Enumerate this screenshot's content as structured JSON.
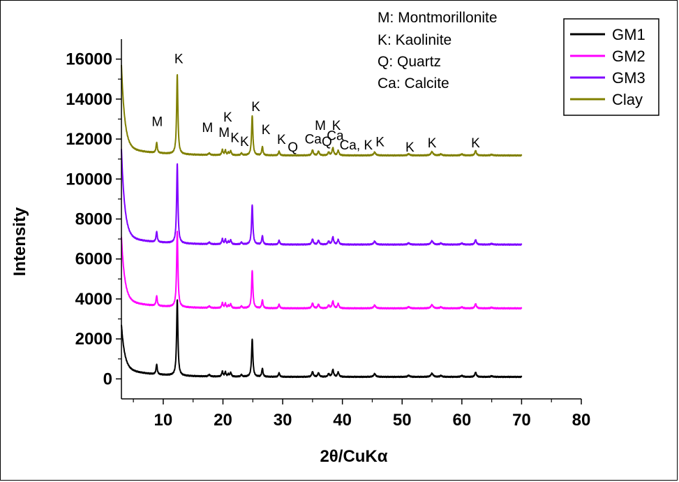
{
  "chart_data": {
    "type": "line",
    "title": "",
    "xlabel": "2θ/CuKα",
    "ylabel": "Intensity",
    "xlim": [
      3,
      80
    ],
    "ylim": [
      -1000,
      17000
    ],
    "xticks": [
      10,
      20,
      30,
      40,
      50,
      60,
      70,
      80
    ],
    "yticks": [
      0,
      2000,
      4000,
      6000,
      8000,
      10000,
      12000,
      14000,
      16000
    ],
    "x_tick_labels": [
      "10",
      "20",
      "30",
      "40",
      "50",
      "60",
      "70",
      "80"
    ],
    "y_tick_labels": [
      "0",
      "2000",
      "4000",
      "6000",
      "8000",
      "10000",
      "12000",
      "14000",
      "16000"
    ],
    "grid": false,
    "legend_position": "top-right",
    "x_range": [
      3,
      70
    ],
    "peaks": [
      {
        "pos": 8.9,
        "h": 500,
        "w": 0.12
      },
      {
        "pos": 12.35,
        "h": 3800,
        "w": 0.13
      },
      {
        "pos": 17.7,
        "h": 90,
        "w": 0.15
      },
      {
        "pos": 19.9,
        "h": 260,
        "w": 0.12
      },
      {
        "pos": 20.4,
        "h": 230,
        "w": 0.12
      },
      {
        "pos": 20.9,
        "h": 120,
        "w": 0.12
      },
      {
        "pos": 21.3,
        "h": 200,
        "w": 0.13
      },
      {
        "pos": 23.1,
        "h": 90,
        "w": 0.15
      },
      {
        "pos": 24.9,
        "h": 1900,
        "w": 0.13
      },
      {
        "pos": 26.6,
        "h": 420,
        "w": 0.12
      },
      {
        "pos": 29.4,
        "h": 200,
        "w": 0.12
      },
      {
        "pos": 35.0,
        "h": 260,
        "w": 0.15
      },
      {
        "pos": 36.0,
        "h": 200,
        "w": 0.15
      },
      {
        "pos": 37.7,
        "h": 150,
        "w": 0.15
      },
      {
        "pos": 38.4,
        "h": 360,
        "w": 0.15
      },
      {
        "pos": 39.3,
        "h": 230,
        "w": 0.15
      },
      {
        "pos": 45.4,
        "h": 150,
        "w": 0.2
      },
      {
        "pos": 51.1,
        "h": 70,
        "w": 0.2
      },
      {
        "pos": 55.0,
        "h": 170,
        "w": 0.22
      },
      {
        "pos": 56.5,
        "h": 60,
        "w": 0.2
      },
      {
        "pos": 60.0,
        "h": 60,
        "w": 0.2
      },
      {
        "pos": 62.3,
        "h": 230,
        "w": 0.15
      },
      {
        "pos": 65.0,
        "h": 40,
        "w": 0.2
      }
    ],
    "series": [
      {
        "name": "GM1",
        "color": "#000000",
        "offset": 0,
        "baseline_end": 100,
        "start_value": 2300,
        "scale": 1.0
      },
      {
        "name": "GM2",
        "color": "#ff00ff",
        "offset": 3450,
        "baseline_end": 80,
        "start_value": 3250,
        "scale": 1.0
      },
      {
        "name": "GM3",
        "color": "#7f00ff",
        "offset": 6650,
        "baseline_end": 70,
        "start_value": 4450,
        "scale": 1.05
      },
      {
        "name": "Clay",
        "color": "#808000",
        "offset": 11100,
        "baseline_end": 80,
        "start_value": 4200,
        "scale": 1.05
      }
    ],
    "annotations": [
      {
        "text": "M",
        "x": 9.0,
        "y": 12650
      },
      {
        "text": "K",
        "x": 12.6,
        "y": 15800
      },
      {
        "text": "M",
        "x": 17.4,
        "y": 12350
      },
      {
        "text": "K",
        "x": 20.8,
        "y": 12870
      },
      {
        "text": "M",
        "x": 20.2,
        "y": 12100
      },
      {
        "text": "K",
        "x": 22.0,
        "y": 11850
      },
      {
        "text": "K",
        "x": 23.6,
        "y": 11650
      },
      {
        "text": "K",
        "x": 25.5,
        "y": 13400
      },
      {
        "text": "K",
        "x": 27.2,
        "y": 12250
      },
      {
        "text": "K",
        "x": 29.8,
        "y": 11750
      },
      {
        "text": "Q",
        "x": 31.7,
        "y": 11380
      },
      {
        "text": "Ca",
        "x": 35.1,
        "y": 11780
      },
      {
        "text": "M",
        "x": 36.3,
        "y": 12450
      },
      {
        "text": "K",
        "x": 39.0,
        "y": 12450
      },
      {
        "text": "Q",
        "x": 37.4,
        "y": 11650
      },
      {
        "text": "Ca",
        "x": 38.8,
        "y": 11950
      },
      {
        "text": "Ca, K",
        "x": 42.3,
        "y": 11470
      },
      {
        "text": "K",
        "x": 46.3,
        "y": 11630
      },
      {
        "text": "K",
        "x": 51.3,
        "y": 11380
      },
      {
        "text": "K",
        "x": 55.0,
        "y": 11580
      },
      {
        "text": "K",
        "x": 62.3,
        "y": 11580
      }
    ]
  },
  "mineral_key": [
    "M: Montmorillonite",
    "K: Kaolinite",
    "Q: Quartz",
    "Ca: Calcite"
  ],
  "legend": {
    "items": [
      {
        "label": "GM1",
        "color": "#000000"
      },
      {
        "label": "GM2",
        "color": "#ff00ff"
      },
      {
        "label": "GM3",
        "color": "#7f00ff"
      },
      {
        "label": "Clay",
        "color": "#808000"
      }
    ]
  }
}
